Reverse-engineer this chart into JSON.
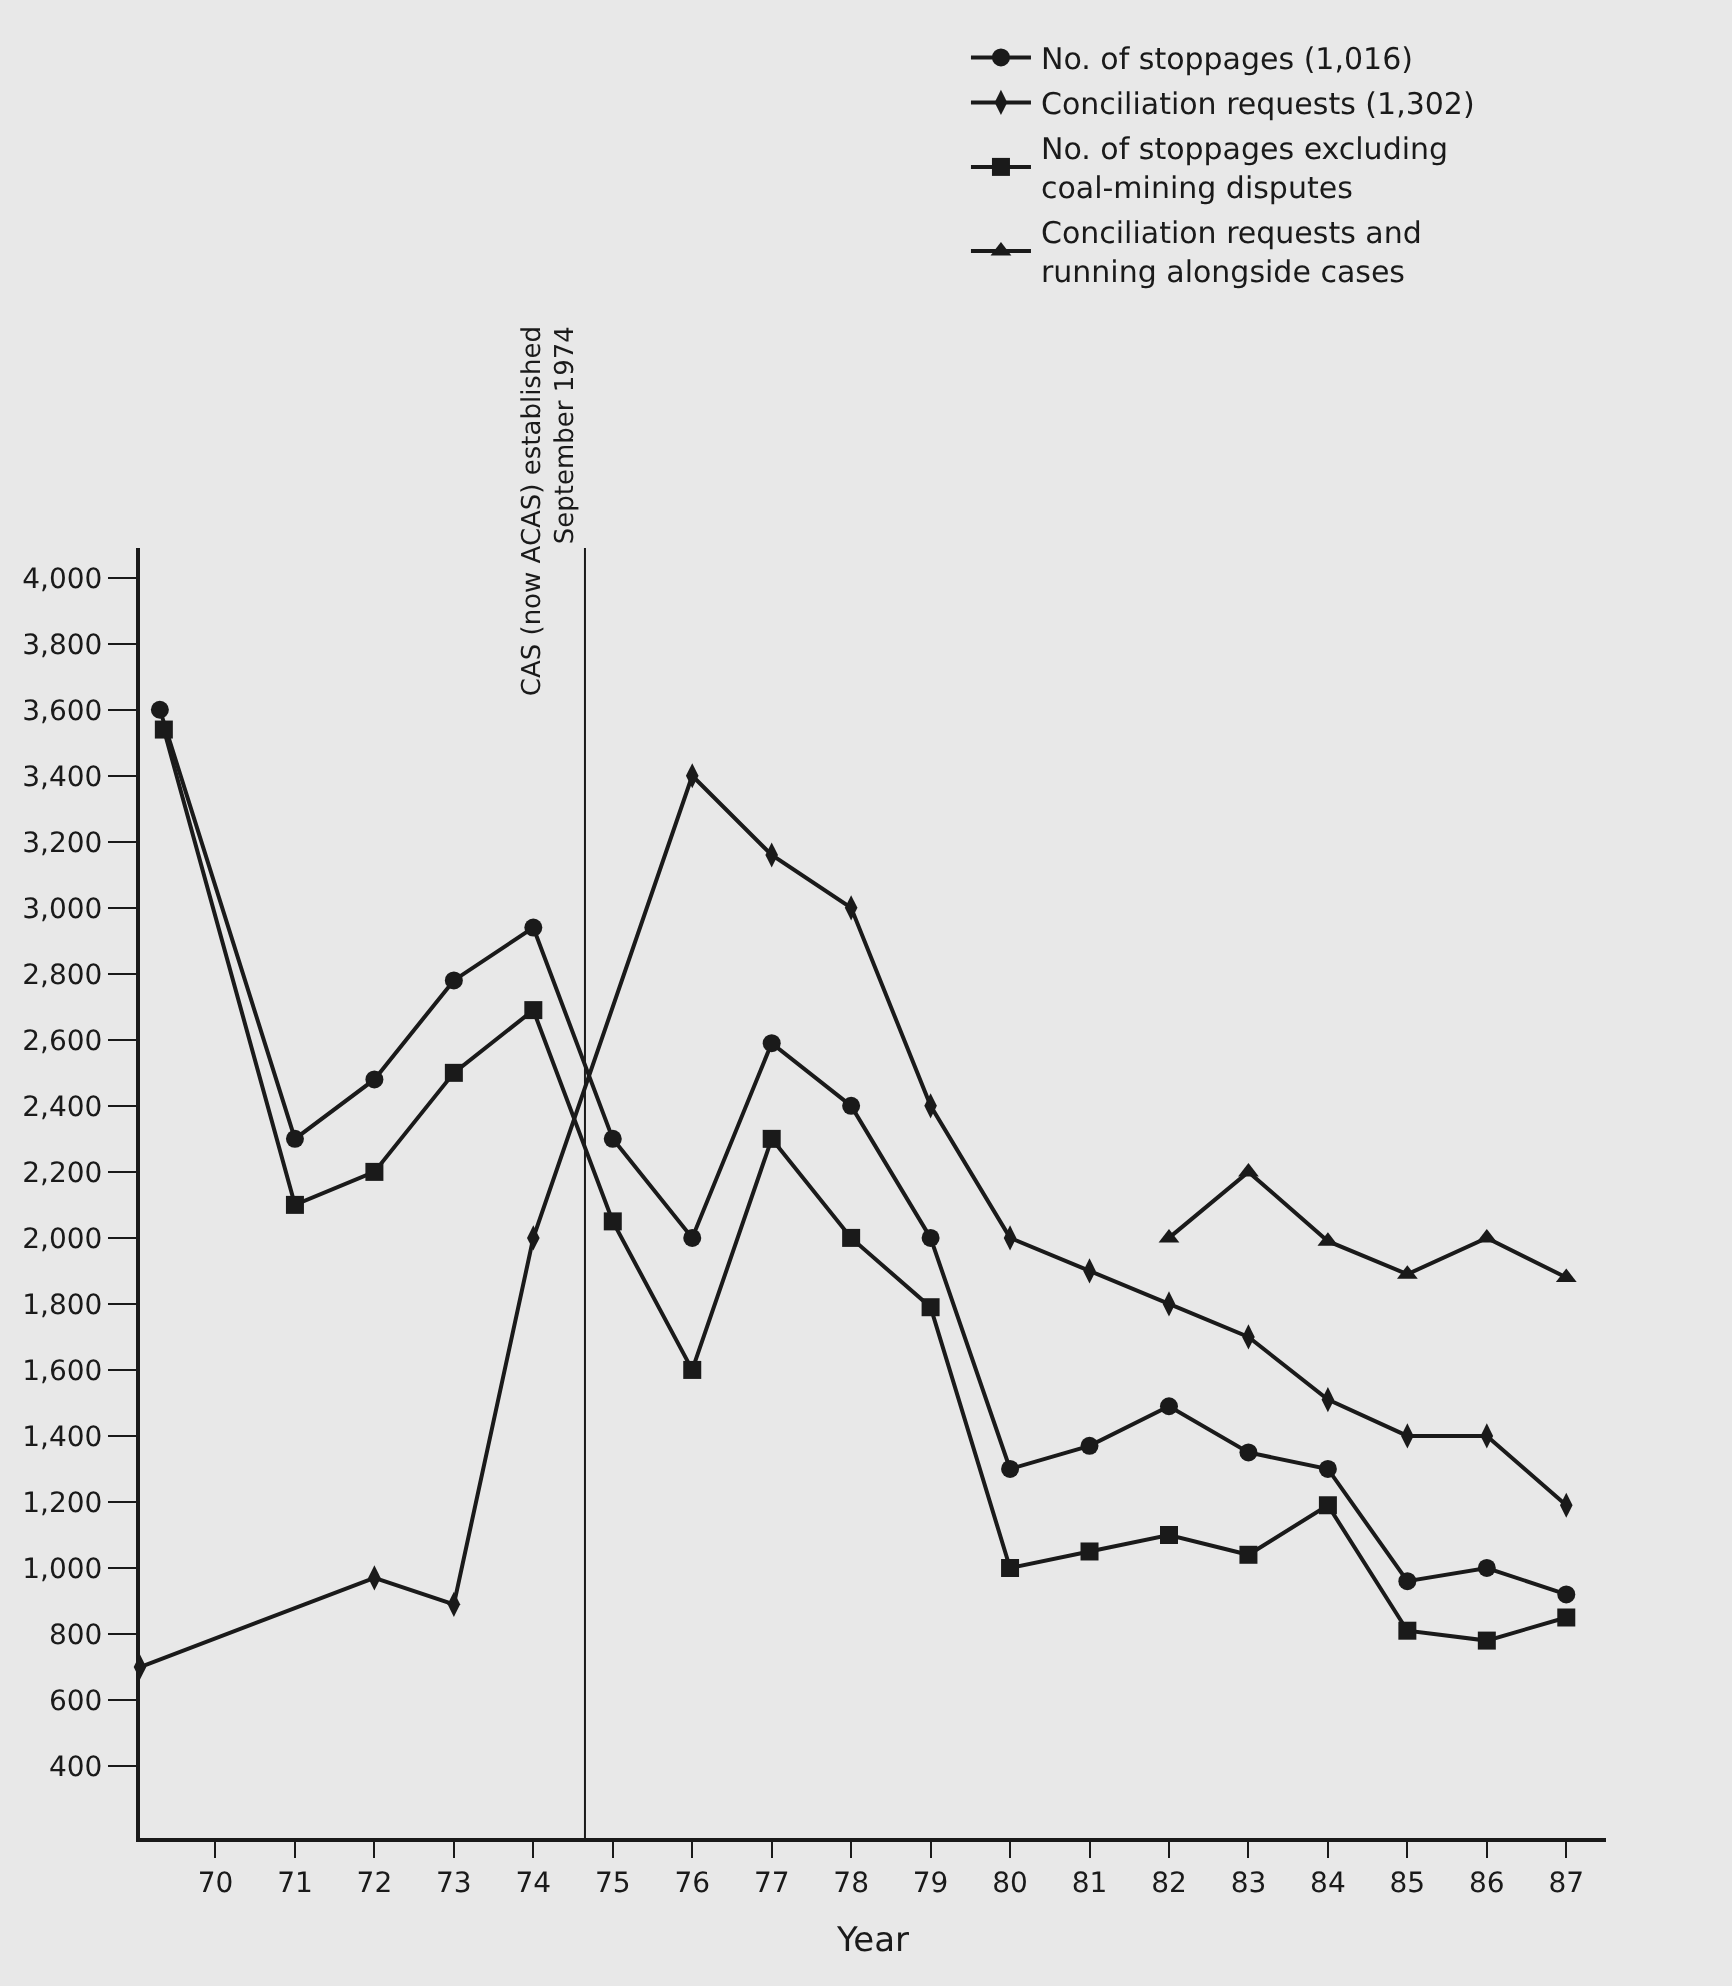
{
  "chart_data": {
    "type": "line",
    "xlabel": "Year",
    "xlim": [
      69.05,
      87.5
    ],
    "xticks": [
      {
        "value": 70,
        "label": "70"
      },
      {
        "value": 71,
        "label": "71"
      },
      {
        "value": 72,
        "label": "72"
      },
      {
        "value": 73,
        "label": "73"
      },
      {
        "value": 74,
        "label": "74"
      },
      {
        "value": 75,
        "label": "75"
      },
      {
        "value": 76,
        "label": "76"
      },
      {
        "value": 77,
        "label": "77"
      },
      {
        "value": 78,
        "label": "78"
      },
      {
        "value": 79,
        "label": "79"
      },
      {
        "value": 80,
        "label": "80"
      },
      {
        "value": 81,
        "label": "81"
      },
      {
        "value": 82,
        "label": "82"
      },
      {
        "value": 83,
        "label": "83"
      },
      {
        "value": 84,
        "label": "84"
      },
      {
        "value": 85,
        "label": "85"
      },
      {
        "value": 86,
        "label": "86"
      },
      {
        "value": 87,
        "label": "87"
      }
    ],
    "ylim": [
      182,
      4090
    ],
    "yticks": [
      {
        "value": 400,
        "label": "400"
      },
      {
        "value": 600,
        "label": "600"
      },
      {
        "value": 800,
        "label": "800"
      },
      {
        "value": 1000,
        "label": "1,000"
      },
      {
        "value": 1200,
        "label": "1,200"
      },
      {
        "value": 1400,
        "label": "1,400"
      },
      {
        "value": 1600,
        "label": "1,600"
      },
      {
        "value": 1800,
        "label": "1,800"
      },
      {
        "value": 2000,
        "label": "2,000"
      },
      {
        "value": 2200,
        "label": "2,200"
      },
      {
        "value": 2400,
        "label": "2,400"
      },
      {
        "value": 2600,
        "label": "2,600"
      },
      {
        "value": 2800,
        "label": "2,800"
      },
      {
        "value": 3000,
        "label": "3,000"
      },
      {
        "value": 3200,
        "label": "3,200"
      },
      {
        "value": 3400,
        "label": "3,400"
      },
      {
        "value": 3600,
        "label": "3,600"
      },
      {
        "value": 3800,
        "label": "3,800"
      },
      {
        "value": 4000,
        "label": "4,000"
      }
    ],
    "grid": false,
    "legend": "top right",
    "line_style": "solid",
    "series": [
      {
        "name": "No. of stoppages (1,016)",
        "color": "#1a1a1a",
        "marker": "circle",
        "x": [
          69.3,
          71,
          72,
          73,
          74,
          75,
          76,
          77,
          78,
          79,
          80,
          81,
          82,
          83,
          84,
          85,
          86,
          87
        ],
        "values": [
          3600,
          2300,
          2480,
          2780,
          2940,
          2300,
          2000,
          2590,
          2400,
          2000,
          1300,
          1370,
          1490,
          1350,
          1300,
          960,
          1000,
          920
        ]
      },
      {
        "name": "Conciliation requests (1,302)",
        "color": "#1a1a1a",
        "marker": "diamond",
        "x": [
          69.05,
          72,
          73,
          74,
          76,
          77,
          78,
          79,
          80,
          81,
          82,
          83,
          84,
          85,
          86,
          87
        ],
        "values": [
          700,
          970,
          890,
          2000,
          3400,
          3160,
          3000,
          2400,
          2000,
          1900,
          1800,
          1700,
          1510,
          1400,
          1400,
          1190
        ]
      },
      {
        "name": "No. of stoppages excluding\ncoal-mining disputes",
        "color": "#1a1a1a",
        "marker": "square",
        "x": [
          69.35,
          71,
          72,
          73,
          74,
          75,
          76,
          77,
          78,
          79,
          80,
          81,
          82,
          83,
          84,
          85,
          86,
          87
        ],
        "values": [
          3540,
          2100,
          2200,
          2500,
          2690,
          2050,
          1600,
          2300,
          2000,
          1790,
          1000,
          1050,
          1100,
          1040,
          1190,
          810,
          780,
          850
        ]
      },
      {
        "name": "Conciliation requests and\nrunning alongside cases",
        "color": "#1a1a1a",
        "marker": "triangle",
        "x": [
          82,
          83,
          84,
          85,
          86,
          87
        ],
        "values": [
          2000,
          2200,
          1990,
          1890,
          2000,
          1880
        ]
      }
    ],
    "ref_lines": [
      {
        "axis": "x",
        "value": 74.65,
        "label": "CAS (now ACAS) established\nSeptember 1974",
        "color": "#1a1a1a"
      }
    ]
  }
}
